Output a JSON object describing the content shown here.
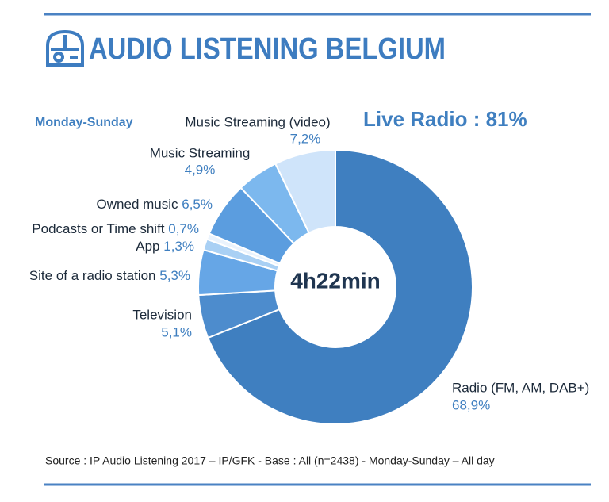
{
  "chart_data": {
    "type": "donut",
    "title": "AUDIO LISTENING BELGIUM",
    "subtitle": "Monday-Sunday",
    "annotation": "Live Radio : 81%",
    "center_label": "4h22min",
    "source": "Source : IP Audio Listening  2017 – IP/GFK - Base : All (n=2438) - Monday-Sunday – All day",
    "categories": [
      "Radio (FM, AM, DAB+)",
      "Television",
      "Site of a radio station",
      "App",
      "Podcasts or Time shift",
      "Owned music",
      "Music Streaming",
      "Music Streaming (video)"
    ],
    "values": [
      68.9,
      5.1,
      5.3,
      1.3,
      0.7,
      6.5,
      4.9,
      7.2
    ],
    "value_labels": [
      "68,9%",
      "5,1%",
      "5,3%",
      "1,3%",
      "0,7%",
      "6,5%",
      "4,9%",
      "7,2%"
    ],
    "colors": [
      "#3f7fc0",
      "#4d8ccd",
      "#66a6e6",
      "#a9d0f4",
      "#eaf3fd",
      "#5b9ddf",
      "#7cb8ee",
      "#cfe4fa"
    ]
  }
}
